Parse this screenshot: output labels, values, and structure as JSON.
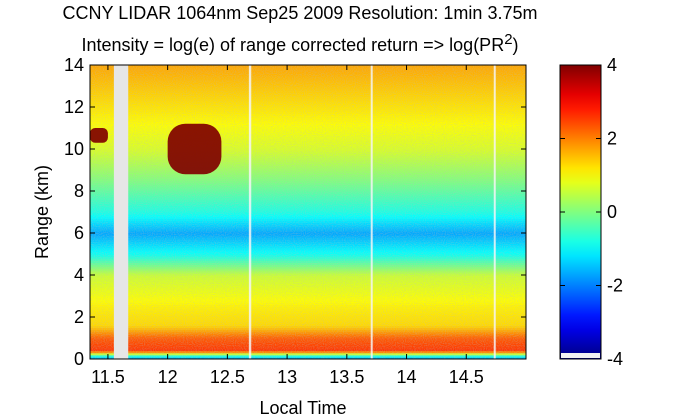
{
  "chart_data": {
    "type": "heatmap",
    "title": "CCNY LIDAR 1064nm Sep25 2009 Resolution: 1min 3.75m",
    "subtitle_prefix": "Intensity = log(e) of range corrected return => log(PR",
    "subtitle_sup": "2",
    "subtitle_suffix": ")",
    "xlabel": "Local Time",
    "ylabel": "Range (km)",
    "xlim": [
      11.35,
      15.0
    ],
    "ylim": [
      0,
      14
    ],
    "xticks": [
      11.5,
      12,
      12.5,
      13,
      13.5,
      14,
      14.5
    ],
    "xtick_labels": [
      "11.5",
      "12",
      "12.5",
      "13",
      "13.5",
      "14",
      "14.5"
    ],
    "yticks": [
      0,
      2,
      4,
      6,
      8,
      10,
      12,
      14
    ],
    "ytick_labels": [
      "0",
      "2",
      "4",
      "6",
      "8",
      "10",
      "12",
      "14"
    ],
    "colorbar": {
      "range": [
        -4,
        4
      ],
      "ticks": [
        4,
        2,
        0,
        -2,
        -4
      ],
      "tick_labels": [
        "4",
        "2",
        "0",
        "-2",
        "-4"
      ],
      "colormap": "jet"
    },
    "data_gaps": [
      {
        "start": 11.55,
        "end": 11.67,
        "kind": "missing"
      },
      {
        "start": 12.68,
        "end": 12.7,
        "kind": "dropout"
      },
      {
        "start": 13.7,
        "end": 13.71,
        "kind": "dropout"
      },
      {
        "start": 14.73,
        "end": 14.74,
        "kind": "dropout"
      }
    ],
    "intensity_profile": [
      {
        "range_km": 0.1,
        "value": -1.5
      },
      {
        "range_km": 0.4,
        "value": 2.6
      },
      {
        "range_km": 1.0,
        "value": 2.3
      },
      {
        "range_km": 1.6,
        "value": 1.3
      },
      {
        "range_km": 2.5,
        "value": 1.1
      },
      {
        "range_km": 4.0,
        "value": 0.6
      },
      {
        "range_km": 5.0,
        "value": -0.9
      },
      {
        "range_km": 6.0,
        "value": -1.7
      },
      {
        "range_km": 7.0,
        "value": -0.8
      },
      {
        "range_km": 8.5,
        "value": 0.0
      },
      {
        "range_km": 10.0,
        "value": 0.7
      },
      {
        "range_km": 12.0,
        "value": 1.2
      },
      {
        "range_km": 14.0,
        "value": 1.7
      }
    ],
    "clouds": [
      {
        "time_start": 11.35,
        "time_end": 11.5,
        "range_start": 10.3,
        "range_end": 11.0,
        "value": 4
      },
      {
        "time_start": 12.0,
        "time_end": 12.45,
        "range_start": 8.8,
        "range_end": 11.2,
        "value": 4
      }
    ]
  }
}
